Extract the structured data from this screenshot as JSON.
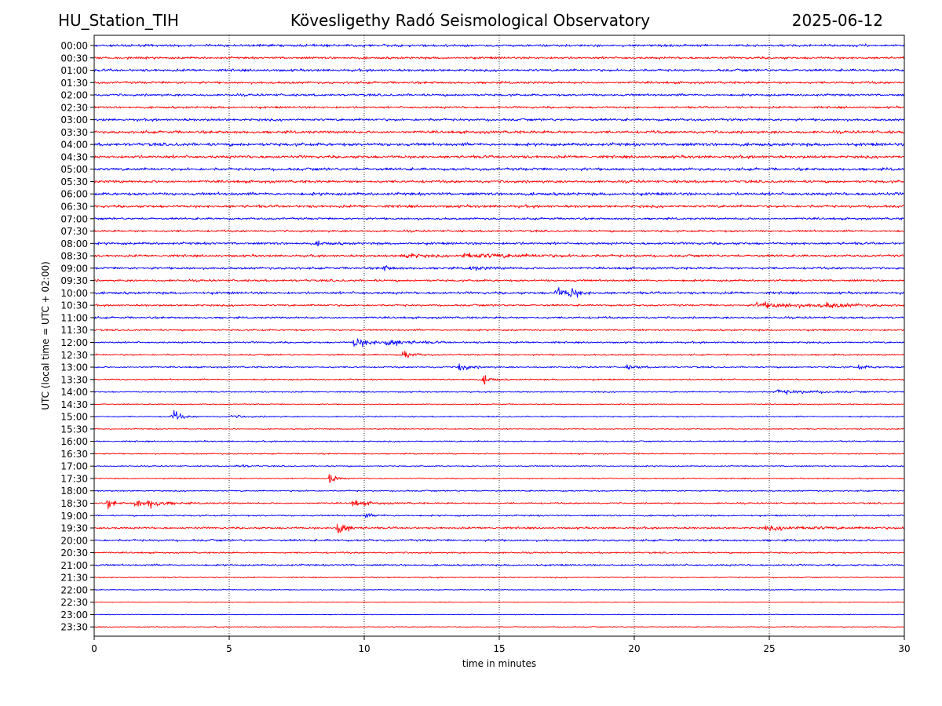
{
  "header": {
    "station": "HU_Station_TIH",
    "observatory": "Kövesligethy Radó Seismological Observatory",
    "date": "2025-06-12"
  },
  "chart_data": {
    "type": "line",
    "title": "Kövesligethy Radó Seismological Observatory",
    "xlabel": "time in minutes",
    "ylabel": "UTC (local time = UTC + 02:00)",
    "xlim": [
      0,
      30
    ],
    "xticks": [
      0,
      5,
      10,
      15,
      20,
      25,
      30
    ],
    "grid": "vertical dotted lines at x ticks",
    "colors": [
      "#0000ff",
      "#ff0000"
    ],
    "color_pattern": "alternating per trace: blue on the hour, red on the half hour",
    "traces": [
      "00:00",
      "00:30",
      "01:00",
      "01:30",
      "02:00",
      "02:30",
      "03:00",
      "03:30",
      "04:00",
      "04:30",
      "05:00",
      "05:30",
      "06:00",
      "06:30",
      "07:00",
      "07:30",
      "08:00",
      "08:30",
      "09:00",
      "09:30",
      "10:00",
      "10:30",
      "11:00",
      "11:30",
      "12:00",
      "12:30",
      "13:00",
      "13:30",
      "14:00",
      "14:30",
      "15:00",
      "15:30",
      "16:00",
      "16:30",
      "17:00",
      "17:30",
      "18:00",
      "18:30",
      "19:00",
      "19:30",
      "20:00",
      "20:30",
      "21:00",
      "21:30",
      "22:00",
      "22:30",
      "23:00",
      "23:30"
    ],
    "noise_level": [
      0.35,
      0.32,
      0.35,
      0.32,
      0.32,
      0.3,
      0.35,
      0.4,
      0.45,
      0.4,
      0.4,
      0.38,
      0.42,
      0.38,
      0.3,
      0.3,
      0.35,
      0.32,
      0.32,
      0.3,
      0.35,
      0.28,
      0.28,
      0.25,
      0.25,
      0.22,
      0.22,
      0.2,
      0.18,
      0.15,
      0.18,
      0.15,
      0.2,
      0.18,
      0.18,
      0.16,
      0.2,
      0.22,
      0.22,
      0.28,
      0.3,
      0.22,
      0.25,
      0.15,
      0.12,
      0.1,
      0.1,
      0.12
    ],
    "events": [
      {
        "trace": "08:00",
        "minute": 8.2,
        "amp": 0.5,
        "dur": 0.4
      },
      {
        "trace": "08:30",
        "minute": 11.4,
        "amp": 0.9,
        "dur": 0.6
      },
      {
        "trace": "08:30",
        "minute": 13.6,
        "amp": 0.7,
        "dur": 2.2
      },
      {
        "trace": "09:00",
        "minute": 10.7,
        "amp": 0.8,
        "dur": 0.3
      },
      {
        "trace": "09:00",
        "minute": 13.9,
        "amp": 0.6,
        "dur": 0.5
      },
      {
        "trace": "10:00",
        "minute": 17.1,
        "amp": 1.8,
        "dur": 0.3
      },
      {
        "trace": "10:00",
        "minute": 17.6,
        "amp": 1.6,
        "dur": 0.3
      },
      {
        "trace": "10:30",
        "minute": 24.5,
        "amp": 0.8,
        "dur": 2.2
      },
      {
        "trace": "10:30",
        "minute": 27.0,
        "amp": 0.7,
        "dur": 0.6
      },
      {
        "trace": "12:00",
        "minute": 9.6,
        "amp": 1.5,
        "dur": 0.6
      },
      {
        "trace": "12:00",
        "minute": 10.8,
        "amp": 0.9,
        "dur": 0.8
      },
      {
        "trace": "12:30",
        "minute": 11.4,
        "amp": 1.6,
        "dur": 0.3
      },
      {
        "trace": "13:00",
        "minute": 13.5,
        "amp": 1.7,
        "dur": 0.3
      },
      {
        "trace": "13:00",
        "minute": 19.7,
        "amp": 0.6,
        "dur": 0.4
      },
      {
        "trace": "13:00",
        "minute": 28.3,
        "amp": 0.6,
        "dur": 0.4
      },
      {
        "trace": "13:30",
        "minute": 14.4,
        "amp": 1.4,
        "dur": 0.25
      },
      {
        "trace": "14:00",
        "minute": 25.2,
        "amp": 0.6,
        "dur": 1.6
      },
      {
        "trace": "15:00",
        "minute": 2.9,
        "amp": 2.0,
        "dur": 0.25
      },
      {
        "trace": "15:00",
        "minute": 5.0,
        "amp": 0.4,
        "dur": 0.6
      },
      {
        "trace": "17:00",
        "minute": 5.3,
        "amp": 0.7,
        "dur": 0.3
      },
      {
        "trace": "17:30",
        "minute": 8.7,
        "amp": 2.0,
        "dur": 0.2
      },
      {
        "trace": "18:30",
        "minute": 0.5,
        "amp": 1.6,
        "dur": 0.2
      },
      {
        "trace": "18:30",
        "minute": 1.5,
        "amp": 1.5,
        "dur": 0.3
      },
      {
        "trace": "18:30",
        "minute": 2.0,
        "amp": 1.2,
        "dur": 0.6
      },
      {
        "trace": "18:30",
        "minute": 9.5,
        "amp": 1.0,
        "dur": 0.6
      },
      {
        "trace": "19:00",
        "minute": 10.0,
        "amp": 0.6,
        "dur": 0.4
      },
      {
        "trace": "19:30",
        "minute": 9.0,
        "amp": 2.6,
        "dur": 0.3
      },
      {
        "trace": "19:30",
        "minute": 24.8,
        "amp": 0.5,
        "dur": 2.5
      }
    ]
  }
}
